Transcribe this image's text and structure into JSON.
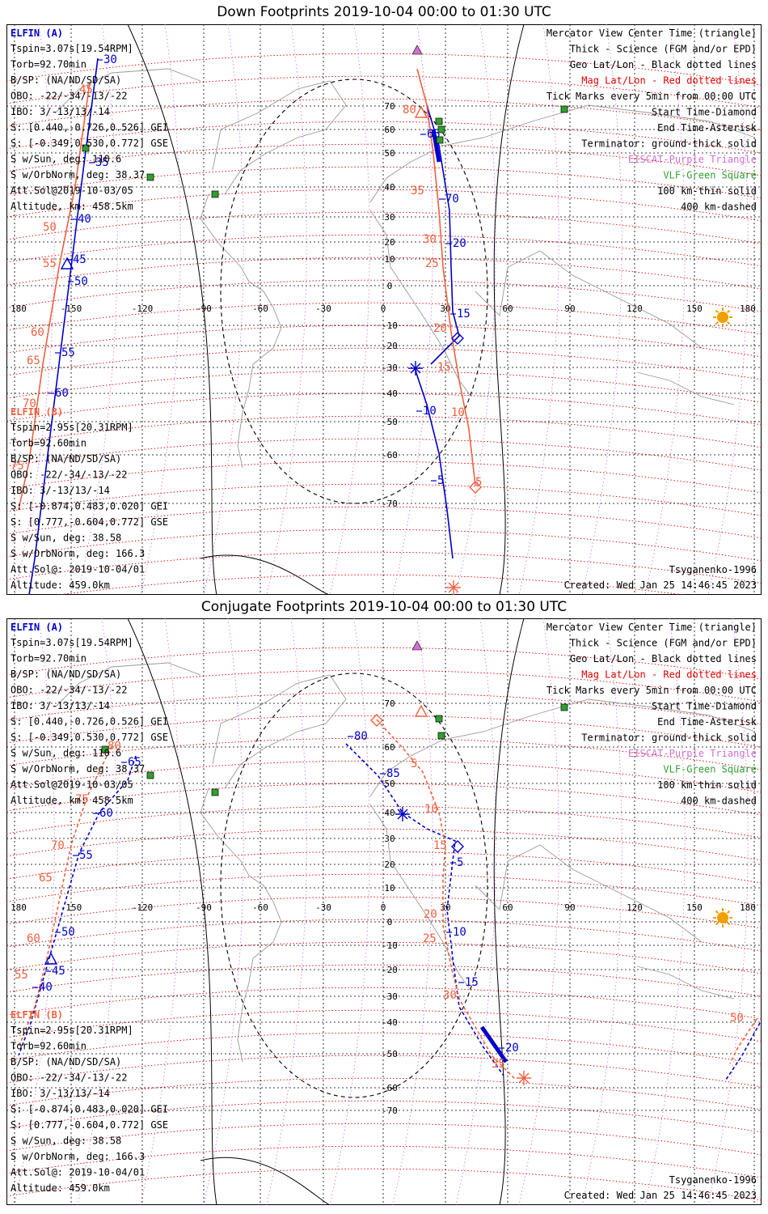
{
  "colors": {
    "blue": "#0000cc",
    "orange": "#f06040",
    "red": "#e00000",
    "violet": "#d070d0",
    "green": "#30a030",
    "sun": "#f0a000"
  },
  "lon_ticks": [
    "180",
    "-150",
    "-120",
    "-90",
    "-60",
    "-30",
    "0",
    "30",
    "60",
    "90",
    "120",
    "150",
    "180"
  ],
  "lat_ticks": [
    "70",
    "60",
    "50",
    "40",
    "30",
    "20",
    "10",
    "0",
    "-10",
    "-20",
    "-30",
    "-40",
    "-50",
    "-60",
    "-70"
  ],
  "icons": {
    "station": "green-square",
    "eiscat": "violet-triangle",
    "sun": "sun-circle"
  },
  "panels": [
    {
      "title": "Down Footprints 2019-10-04 00:00 to 01:30 UTC",
      "elfin_a": {
        "name": "ELFIN (A)",
        "lines": [
          "Tspin=3.07s[19.54RPM]",
          "Torb=92.70min",
          "B/SP: (NA/ND/SD/SA)",
          "OBO: -22/-34/-13/-22",
          "IBO: 3/-13/13/-14",
          "S: [0.440,-0.726,0.526] GEI",
          "S: [-0.349,0.530,0.772] GSE",
          "S w/Sun, deg: 110.6",
          "S w/OrbNorm, deg: 38.37",
          "Att.Sol@2019-10-03/05",
          "Altitude, km: 458.5km"
        ]
      },
      "elfin_b": {
        "name": "ELFIN (B)",
        "lines": [
          "Tspin=2.95s[20.31RPM]",
          "Torb=92.60min",
          "B/SP: (NA/ND/SD/SA)",
          "OBO: -22/-34/-13/-22",
          "IBO: 3/-13/13/-14",
          "S: [-0.874,0.483,0.020] GEI",
          "S: [0.777,-0.604,0.772] GSE",
          "S w/Sun, deg: 38.58",
          "S w/OrbNorm, deg: 166.3",
          "Att.Sol@: 2019-10-04/01",
          "Altitude: 459.0km"
        ]
      },
      "legend": [
        "Mercator View Center Time (triangle)",
        "Thick - Science (FGM and/or EPD)",
        "Geo Lat/Lon - Black dotted lines",
        "Mag Lat/Lon - Red dotted lines",
        "Tick Marks every 5min from 00:00 UTC",
        "Start Time-Diamond",
        "End Time-Asterisk",
        "Terminator: ground-thick solid",
        "EISCAT-Purple Triangle",
        "VLF-Green Square",
        "100 km-thin solid",
        "400 km-dashed"
      ],
      "model": "Tsyganenko-1996",
      "created": "Created: Wed Jan 25 14:46:45 2023",
      "blue_labels": [
        "30",
        "35",
        "40",
        "45",
        "50",
        "55",
        "60",
        "65",
        "70",
        "20",
        "15",
        "10",
        "5",
        "85",
        "80"
      ],
      "orange_labels": [
        "45",
        "50",
        "55",
        "60",
        "65",
        "70",
        "75",
        "80",
        "35",
        "30",
        "25",
        "20",
        "15",
        "10",
        "5"
      ]
    },
    {
      "title": "Conjugate Footprints 2019-10-04 00:00 to 01:30 UTC",
      "elfin_a": {
        "name": "ELFIN (A)",
        "lines": [
          "Tspin=3.07s[19.54RPM]",
          "Torb=92.70min",
          "B/SP: (NA/ND/SD/SA)",
          "OBO: -22/-34/-13/-22",
          "IBO: 3/-13/13/-14",
          "S: [0.440,-0.726,0.526] GEI",
          "S: [-0.349,0.530,0.772] GSE",
          "S w/Sun, deg: 110.6",
          "S w/OrbNorm, deg: 38.37",
          "Att.Sol@2019-10-03/05",
          "Altitude, km: 458.5km"
        ]
      },
      "elfin_b": {
        "name": "ELFIN (B)",
        "lines": [
          "Tspin=2.95s[20.31RPM]",
          "Torb=92.60min",
          "B/SP: (NA/ND/SD/SA)",
          "OBO: -22/-34/-13/-22",
          "IBO: 3/-13/13/-14",
          "S: [-0.874,0.483,0.020] GEI",
          "S: [0.777,-0.604,0.772] GSE",
          "S w/Sun, deg: 38.58",
          "S w/OrbNorm, deg: 166.3",
          "Att.Sol@: 2019-10-04/01",
          "Altitude: 459.0km"
        ]
      },
      "legend": [
        "Mercator View Center Time (triangle)",
        "Thick - Science (FGM and/or EPD)",
        "Geo Lat/Lon - Black dotted lines",
        "Mag Lat/Lon - Red dotted lines",
        "Tick Marks every 5min from 00:00 UTC",
        "Start Time-Diamond",
        "End Time-Asterisk",
        "Terminator: ground-thick solid",
        "EISCAT-Purple Triangle",
        "VLF-Green Square",
        "100 km-thin solid",
        "400 km-dashed"
      ],
      "model": "Tsyganenko-1996",
      "created": "Created: Wed Jan 25 14:46:45 2023",
      "blue_labels": [
        "80",
        "85",
        "5",
        "10",
        "15",
        "20",
        "65",
        "60",
        "55",
        "50",
        "45",
        "40"
      ],
      "orange_labels": [
        "80",
        "75",
        "70",
        "65",
        "60",
        "55",
        "5",
        "10",
        "15",
        "20",
        "25",
        "30",
        "35",
        "50"
      ]
    }
  ]
}
